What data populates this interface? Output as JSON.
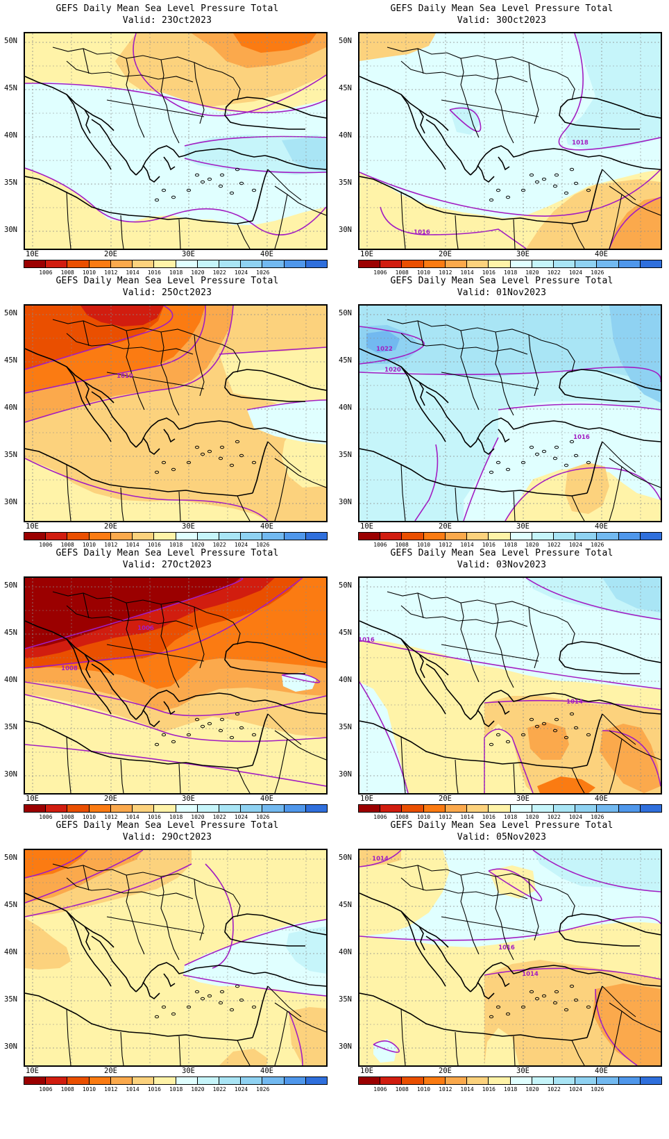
{
  "colorbar": {
    "colors": [
      "#9b0000",
      "#d11d0f",
      "#ea4f00",
      "#fb7b12",
      "#fba94c",
      "#fcd27d",
      "#fff3a8",
      "#e0ffff",
      "#c6f5fa",
      "#a9e5f5",
      "#8fd2f2",
      "#72b9f0",
      "#4f97eb",
      "#2f6fdc"
    ],
    "labels": [
      "1006",
      "1008",
      "1010",
      "1012",
      "1014",
      "1016",
      "1018",
      "1020",
      "1022",
      "1024",
      "1026"
    ]
  },
  "axes": {
    "lat_ticks": [
      "50N",
      "45N",
      "40N",
      "35N",
      "30N"
    ],
    "lon_ticks": [
      "10E",
      "20E",
      "30E",
      "40E"
    ]
  },
  "panels": [
    {
      "id": "p1",
      "title": "GEFS Daily Mean Sea Level Pressure Total",
      "valid": "Valid: 23Oct2023",
      "contour_labels": []
    },
    {
      "id": "p2",
      "title": "GEFS Daily Mean Sea Level Pressure Total",
      "valid": "Valid: 30Oct2023",
      "contour_labels": [
        "1018",
        "1016"
      ]
    },
    {
      "id": "p3",
      "title": "GEFS Daily Mean Sea Level Pressure Total",
      "valid": "Valid: 25Oct2023",
      "contour_labels": [
        "1010"
      ]
    },
    {
      "id": "p4",
      "title": "GEFS Daily Mean Sea Level Pressure Total",
      "valid": "Valid: 01Nov2023",
      "contour_labels": [
        "1022",
        "1020",
        "1016"
      ]
    },
    {
      "id": "p5",
      "title": "GEFS Daily Mean Sea Level Pressure Total",
      "valid": "Valid: 27Oct2023",
      "contour_labels": [
        "1006",
        "1008"
      ]
    },
    {
      "id": "p6",
      "title": "GEFS Daily Mean Sea Level Pressure Total",
      "valid": "Valid: 03Nov2023",
      "contour_labels": [
        "1016",
        "1014"
      ]
    },
    {
      "id": "p7",
      "title": "GEFS Daily Mean Sea Level Pressure Total",
      "valid": "Valid: 29Oct2023",
      "contour_labels": []
    },
    {
      "id": "p8",
      "title": "GEFS Daily Mean Sea Level Pressure Total",
      "valid": "Valid: 05Nov2023",
      "contour_labels": [
        "1014",
        "1016",
        "1014"
      ]
    }
  ]
}
